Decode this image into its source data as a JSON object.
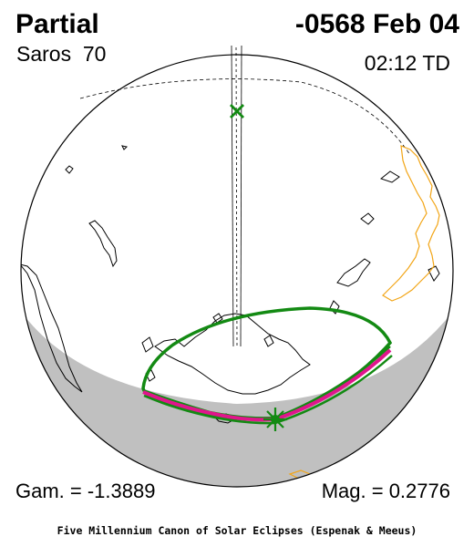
{
  "header": {
    "eclipse_type": "Partial",
    "date": "-0568 Feb 04",
    "saros": "Saros  70",
    "time": "02:12 TD"
  },
  "footer": {
    "gamma": "Gam. = -1.3889",
    "magnitude": "Mag. = 0.2776",
    "credit": "Five Millennium Canon of Solar Eclipses (Espenak & Meeus)"
  },
  "map": {
    "colors": {
      "night_shade": "#c0c0c0",
      "eclipse_limit": "#138a13",
      "central_path": "#e0158c",
      "coastline_orange": "#f2a516",
      "outline": "#000000"
    },
    "markers": {
      "sub_solar_point": "x-mark",
      "greatest_eclipse": "asterisk"
    }
  }
}
